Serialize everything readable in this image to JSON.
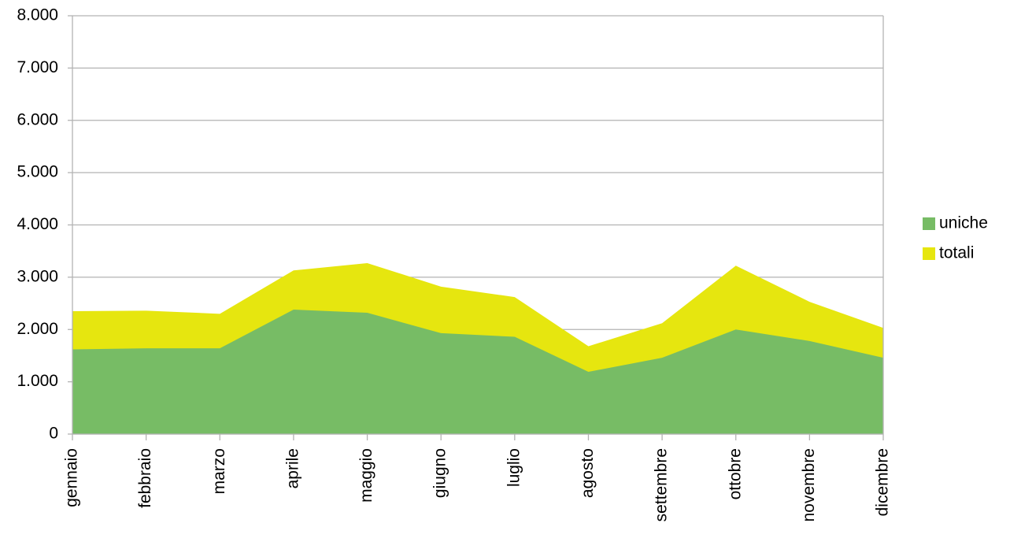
{
  "chart_data": {
    "type": "area",
    "categories": [
      "gennaio",
      "febbraio",
      "marzo",
      "aprile",
      "maggio",
      "giugno",
      "luglio",
      "agosto",
      "settembre",
      "ottobre",
      "novembre",
      "dicembre"
    ],
    "series": [
      {
        "name": "uniche",
        "color": "#77bc65",
        "values": [
          1620,
          1640,
          1640,
          2380,
          2320,
          1930,
          1860,
          1190,
          1460,
          2000,
          1780,
          1460
        ]
      },
      {
        "name": "totali",
        "color": "#e6e60f",
        "values": [
          2350,
          2360,
          2300,
          3130,
          3270,
          2820,
          2620,
          1680,
          2120,
          3220,
          2530,
          2030
        ]
      }
    ],
    "ylim": [
      0,
      8000
    ],
    "yticks": [
      0,
      {
        "value": 1000,
        "label": "1.000"
      },
      {
        "value": 2000,
        "label": "2.000"
      },
      {
        "value": 3000,
        "label": "3.000"
      },
      {
        "value": 4000,
        "label": "4.000"
      },
      {
        "value": 5000,
        "label": "5.000"
      },
      {
        "value": 6000,
        "label": "6.000"
      },
      {
        "value": 7000,
        "label": "7.000"
      },
      {
        "value": 8000,
        "label": "8.000"
      }
    ],
    "grid": true,
    "legend": "right"
  }
}
